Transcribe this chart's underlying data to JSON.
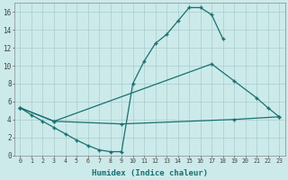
{
  "xlabel": "Humidex (Indice chaleur)",
  "color": "#1a7070",
  "bg_color": "#cceaea",
  "grid_color": "#aacccc",
  "ylim": [
    0,
    17
  ],
  "yticks": [
    0,
    2,
    4,
    6,
    8,
    10,
    12,
    14,
    16
  ],
  "xlim": [
    -0.5,
    23.5
  ],
  "line1_pts": [
    [
      0,
      5.3
    ],
    [
      1,
      4.5
    ],
    [
      2,
      3.8
    ],
    [
      3,
      3.1
    ],
    [
      4,
      2.4
    ],
    [
      5,
      1.7
    ],
    [
      6,
      1.1
    ],
    [
      7,
      0.6
    ],
    [
      8,
      0.4
    ],
    [
      9,
      0.4
    ],
    [
      10,
      8.0
    ],
    [
      11,
      10.5
    ],
    [
      12,
      12.5
    ],
    [
      13,
      13.5
    ],
    [
      14,
      15.0
    ],
    [
      15,
      16.5
    ],
    [
      16,
      16.5
    ],
    [
      17,
      15.7
    ],
    [
      18,
      13.0
    ]
  ],
  "line2_pts": [
    [
      0,
      5.3
    ],
    [
      3,
      3.8
    ],
    [
      17,
      10.2
    ],
    [
      19,
      8.3
    ],
    [
      21,
      6.4
    ],
    [
      22,
      5.3
    ],
    [
      23,
      4.3
    ]
  ],
  "line3_pts": [
    [
      0,
      5.3
    ],
    [
      3,
      3.8
    ],
    [
      9,
      3.5
    ],
    [
      19,
      4.0
    ],
    [
      23,
      4.3
    ]
  ]
}
